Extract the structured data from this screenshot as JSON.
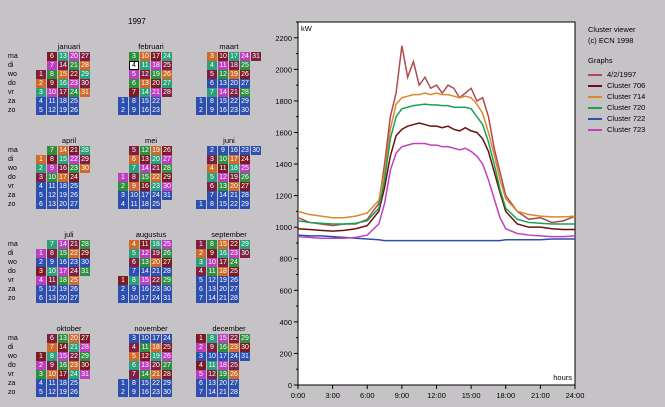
{
  "calendar": {
    "year": "1997",
    "day_labels": [
      "ma",
      "di",
      "wo",
      "do",
      "vr",
      "za",
      "zo"
    ],
    "months": [
      {
        "name": "januari",
        "start": 2,
        "days": 31
      },
      {
        "name": "februari",
        "start": 5,
        "days": 28
      },
      {
        "name": "maart",
        "start": 5,
        "days": 31
      },
      {
        "name": "april",
        "start": 1,
        "days": 30
      },
      {
        "name": "mei",
        "start": 3,
        "days": 31
      },
      {
        "name": "juni",
        "start": 6,
        "days": 30
      },
      {
        "name": "juli",
        "start": 1,
        "days": 31
      },
      {
        "name": "augustus",
        "start": 4,
        "days": 31
      },
      {
        "name": "september",
        "start": 0,
        "days": 30
      },
      {
        "name": "oktober",
        "start": 2,
        "days": 31
      },
      {
        "name": "november",
        "start": 5,
        "days": 30
      },
      {
        "name": "december",
        "start": 0,
        "days": 31
      }
    ],
    "selected": {
      "month": "februari",
      "day": "4"
    }
  },
  "panel": {
    "title": "Cluster viewer",
    "copyright": "(c) ECN 1998",
    "graphs_label": "Graphs"
  },
  "colors": {
    "day_type": [
      "#7b1c24",
      "#2ba07a",
      "#bb3fbf",
      "#2c4fb0",
      "#7f2040",
      "#2e8f3f",
      "#ce6a2a"
    ]
  },
  "chart_data": {
    "type": "line",
    "ylabel": "kW",
    "xlabel": "hours",
    "ylim": [
      0,
      2300
    ],
    "xlim": [
      0,
      24
    ],
    "xticks": [
      "0:00",
      "3:00",
      "6:00",
      "9:00",
      "12:00",
      "15:00",
      "18:00",
      "21:00",
      "24:00"
    ],
    "yticks": [
      "0",
      "200",
      "400",
      "600",
      "800",
      "1000",
      "1200",
      "1400",
      "1600",
      "1800",
      "2000",
      "2200"
    ],
    "x": [
      0,
      1,
      2,
      3,
      4,
      5,
      6,
      7,
      7.5,
      8,
      8.5,
      9,
      9.5,
      10,
      10.5,
      11,
      11.5,
      12,
      12.5,
      13,
      13.5,
      14,
      14.5,
      15,
      15.5,
      16,
      16.5,
      17,
      17.5,
      18,
      19,
      20,
      21,
      22,
      23,
      24
    ],
    "series": [
      {
        "name": "4/2/1997",
        "color": "#b04a50",
        "values": [
          1060,
          1030,
          1020,
          1010,
          1020,
          1020,
          1050,
          1150,
          1400,
          1700,
          1850,
          2150,
          1950,
          2050,
          1900,
          1950,
          1880,
          1900,
          1850,
          1900,
          1880,
          1820,
          1850,
          1880,
          1800,
          1820,
          1700,
          1500,
          1350,
          1200,
          1100,
          1050,
          1060,
          1030,
          1040,
          1070
        ]
      },
      {
        "name": "Cluster 706",
        "color": "#6b1010",
        "values": [
          990,
          985,
          980,
          975,
          980,
          990,
          1010,
          1100,
          1250,
          1450,
          1580,
          1620,
          1640,
          1650,
          1660,
          1650,
          1640,
          1640,
          1630,
          1640,
          1620,
          1610,
          1630,
          1610,
          1600,
          1560,
          1480,
          1350,
          1220,
          1100,
          1020,
          1000,
          1000,
          990,
          985,
          985
        ]
      },
      {
        "name": "Cluster 714",
        "color": "#d88a2a",
        "values": [
          1100,
          1080,
          1070,
          1060,
          1060,
          1070,
          1090,
          1170,
          1350,
          1620,
          1780,
          1820,
          1830,
          1840,
          1840,
          1850,
          1840,
          1850,
          1840,
          1840,
          1830,
          1820,
          1830,
          1820,
          1780,
          1720,
          1600,
          1460,
          1300,
          1180,
          1100,
          1080,
          1070,
          1065,
          1065,
          1070
        ]
      },
      {
        "name": "Cluster 720",
        "color": "#1aa05a",
        "values": [
          1040,
          1030,
          1025,
          1020,
          1020,
          1025,
          1040,
          1120,
          1300,
          1560,
          1700,
          1750,
          1760,
          1770,
          1775,
          1780,
          1775,
          1775,
          1770,
          1770,
          1760,
          1760,
          1760,
          1750,
          1700,
          1650,
          1540,
          1400,
          1240,
          1120,
          1050,
          1030,
          1025,
          1020,
          1020,
          1020
        ]
      },
      {
        "name": "Cluster 722",
        "color": "#2c4fb0",
        "values": [
          950,
          945,
          945,
          940,
          935,
          930,
          925,
          920,
          915,
          915,
          915,
          915,
          915,
          915,
          915,
          915,
          915,
          915,
          915,
          915,
          915,
          915,
          915,
          915,
          915,
          915,
          915,
          915,
          915,
          920,
          920,
          920,
          920,
          925,
          925,
          925
        ]
      },
      {
        "name": "Cluster 723",
        "color": "#c040c0",
        "values": [
          940,
          935,
          930,
          930,
          930,
          935,
          950,
          1020,
          1150,
          1360,
          1470,
          1510,
          1520,
          1530,
          1530,
          1530,
          1520,
          1520,
          1510,
          1510,
          1500,
          1490,
          1500,
          1480,
          1450,
          1400,
          1300,
          1180,
          1060,
          990,
          960,
          950,
          945,
          940,
          940,
          945
        ]
      }
    ]
  }
}
